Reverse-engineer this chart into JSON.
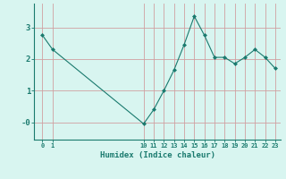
{
  "x": [
    0,
    1,
    10,
    11,
    12,
    13,
    14,
    15,
    16,
    17,
    18,
    19,
    20,
    21,
    22,
    23
  ],
  "y": [
    2.75,
    2.3,
    -0.05,
    0.4,
    1.0,
    1.65,
    2.45,
    3.35,
    2.75,
    2.05,
    2.05,
    1.85,
    2.05,
    2.3,
    2.05,
    1.7
  ],
  "line_color": "#1a7a6e",
  "marker_color": "#1a7a6e",
  "bg_color": "#d8f5f0",
  "grid_color": "#d0a0a0",
  "axis_label": "Humidex (Indice chaleur)",
  "xtick_positions": [
    0,
    1,
    10,
    11,
    12,
    13,
    14,
    15,
    16,
    17,
    18,
    19,
    20,
    21,
    22,
    23
  ],
  "xtick_labels": [
    "0",
    "1",
    "10",
    "11",
    "12",
    "13",
    "14",
    "15",
    "16",
    "17",
    "18",
    "19",
    "20",
    "21",
    "22",
    "23"
  ],
  "ytick_positions": [
    0,
    1,
    2,
    3
  ],
  "ytick_labels": [
    "-0",
    "1",
    "2",
    "3"
  ],
  "ylim": [
    -0.55,
    3.75
  ],
  "xlim": [
    -0.8,
    23.5
  ]
}
